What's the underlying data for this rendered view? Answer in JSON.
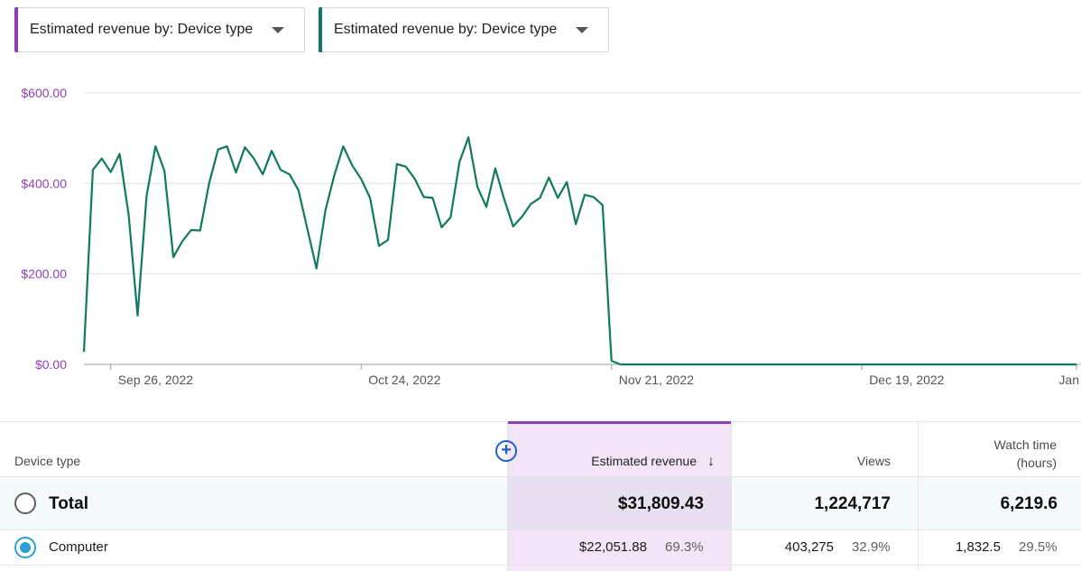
{
  "dropdowns": [
    {
      "label": "Estimated revenue by: Device type",
      "accent": "#8e3fb5"
    },
    {
      "label": "Estimated revenue by: Device type",
      "accent": "#0f7a5f"
    }
  ],
  "chart_data": {
    "type": "line",
    "title": "",
    "xlabel": "",
    "ylabel": "",
    "ylim": [
      0,
      600
    ],
    "y_ticks": [
      "$600.00",
      "$400.00",
      "$200.00",
      "$0.00"
    ],
    "y_tick_values": [
      600,
      400,
      200,
      0
    ],
    "x_tick_labels": [
      "Sep 26, 2022",
      "Oct 24, 2022",
      "Nov 21, 2022",
      "Dec 19, 2022",
      "Jan"
    ],
    "x_tick_days": [
      3,
      31,
      59,
      87,
      111
    ],
    "series": [
      {
        "name": "Estimated revenue",
        "color": "#0f7a5f",
        "days": [
          0,
          1,
          2,
          3,
          4,
          5,
          6,
          7,
          8,
          9,
          10,
          11,
          12,
          13,
          14,
          15,
          16,
          17,
          18,
          19,
          20,
          21,
          22,
          23,
          24,
          25,
          26,
          27,
          28,
          29,
          30,
          31,
          32,
          33,
          34,
          35,
          36,
          37,
          38,
          39,
          40,
          41,
          42,
          43,
          44,
          45,
          46,
          47,
          48,
          49,
          50,
          51,
          52,
          53,
          54,
          55,
          56,
          57,
          58,
          59,
          60,
          61,
          62,
          63,
          64,
          65,
          66,
          67,
          68,
          69,
          70,
          71,
          72,
          73,
          74,
          75,
          76,
          77,
          78,
          79,
          80,
          81,
          82,
          83,
          84,
          85,
          86,
          87,
          88,
          89,
          90,
          91,
          92,
          93,
          94,
          95,
          96,
          97,
          98,
          99,
          100,
          101,
          102,
          103,
          104,
          105,
          106,
          107,
          108,
          109,
          110,
          111
        ],
        "values": [
          28,
          430,
          455,
          425,
          465,
          330,
          108,
          372,
          482,
          428,
          237,
          272,
          297,
          296,
          400,
          475,
          482,
          424,
          480,
          455,
          420,
          472,
          430,
          420,
          385,
          298,
          212,
          340,
          418,
          482,
          440,
          410,
          368,
          262,
          275,
          443,
          437,
          410,
          370,
          368,
          303,
          325,
          447,
          502,
          392,
          348,
          433,
          365,
          305,
          327,
          355,
          368,
          413,
          368,
          403,
          310,
          375,
          370,
          352,
          8,
          0,
          0,
          0,
          0,
          0,
          0,
          0,
          0,
          0,
          0,
          0,
          0,
          0,
          0,
          0,
          0,
          0,
          0,
          0,
          0,
          0,
          0,
          0,
          0,
          0,
          0,
          0,
          0,
          0,
          0,
          0,
          0,
          0,
          0,
          0,
          0,
          0,
          0,
          0,
          0,
          0,
          0,
          0,
          0,
          0,
          0,
          0,
          0,
          0,
          0,
          0,
          0
        ]
      }
    ]
  },
  "table": {
    "headers": {
      "device_type": "Device type",
      "estimated_revenue": "Estimated revenue",
      "views": "Views",
      "watch_time_line1": "Watch time",
      "watch_time_line2": "(hours)"
    },
    "sort_icon": "arrow-down-icon",
    "add_icon": "add-metric-icon",
    "total": {
      "label": "Total",
      "revenue": "$31,809.43",
      "views": "1,224,717",
      "watch_time": "6,219.6"
    },
    "rows": [
      {
        "label": "Computer",
        "revenue": "$22,051.88",
        "revenue_pct": "69.3%",
        "views": "403,275",
        "views_pct": "32.9%",
        "watch_time": "1,832.5",
        "watch_time_pct": "29.5%"
      }
    ]
  }
}
